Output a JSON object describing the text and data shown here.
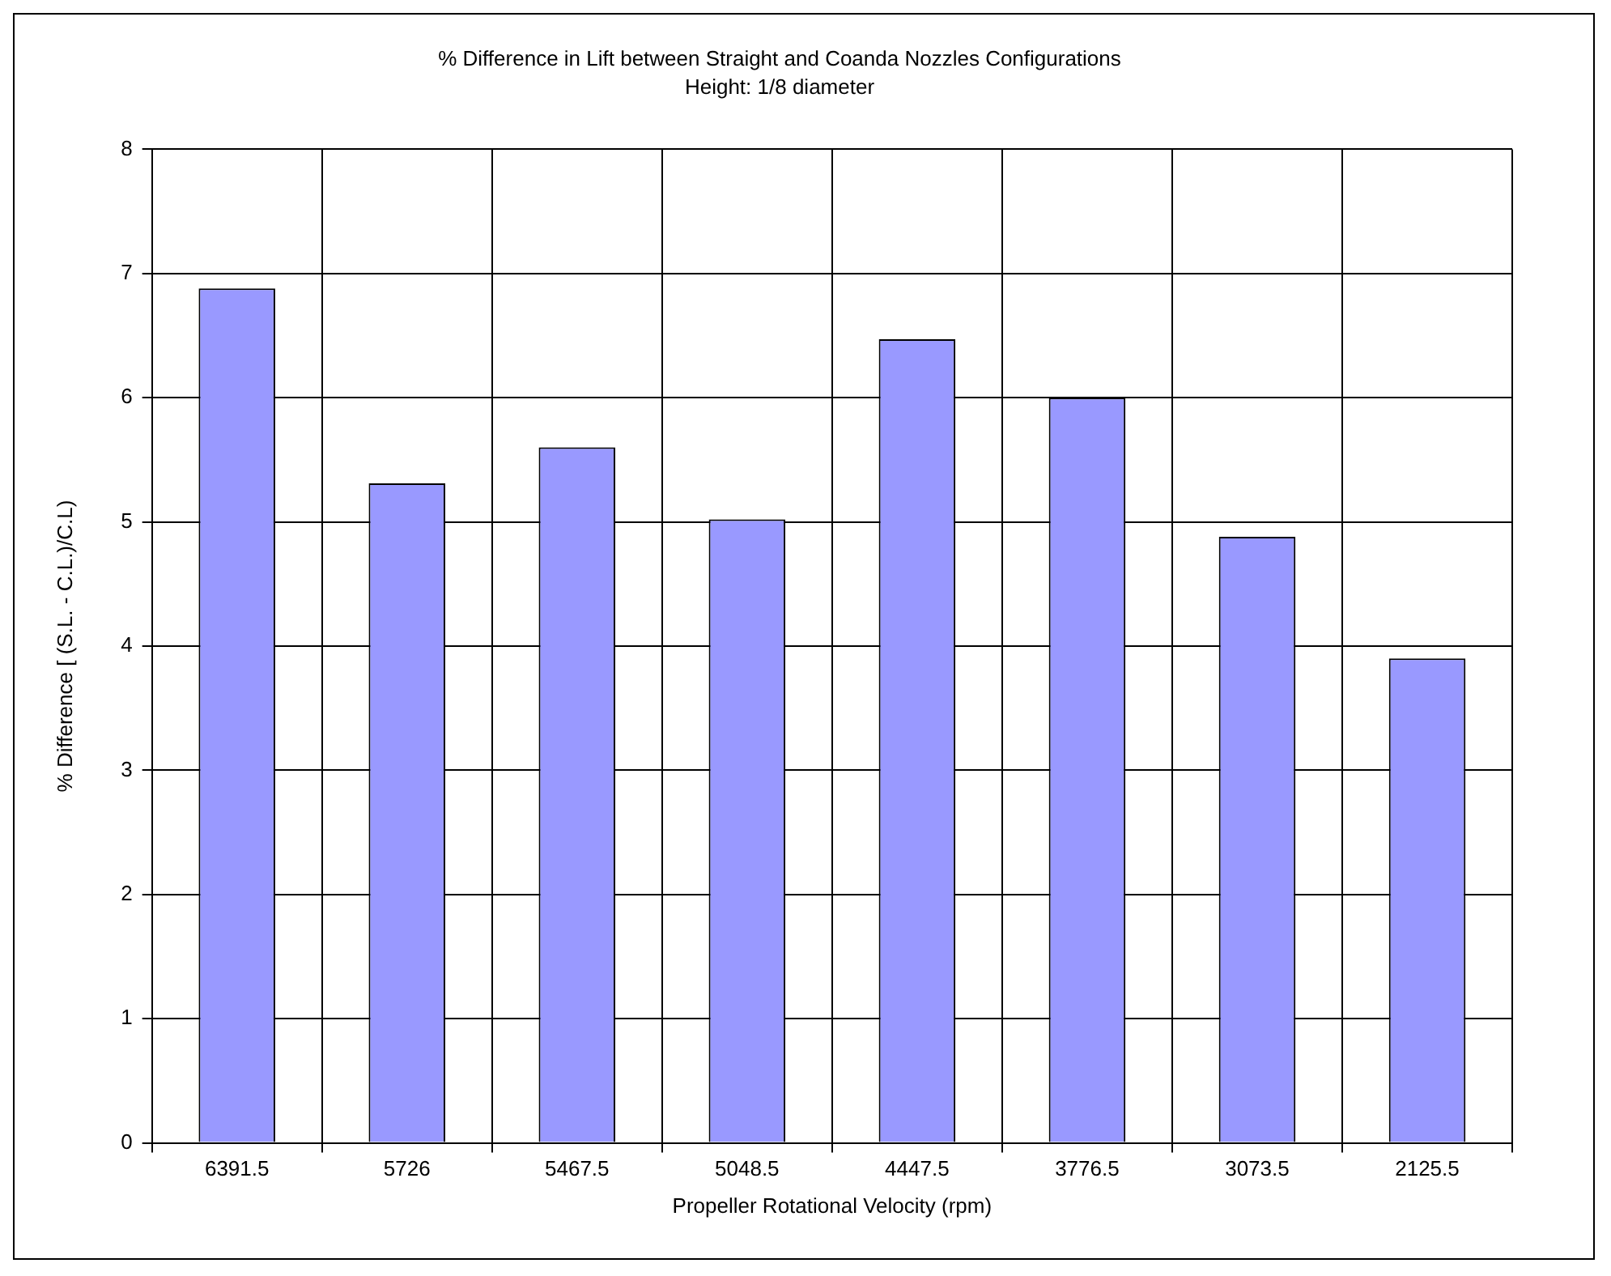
{
  "chart_data": {
    "type": "bar",
    "title": "% Difference in Lift between Straight and Coanda Nozzles Configurations",
    "subtitle": "Height: 1/8 diameter",
    "xlabel": "Propeller Rotational Velocity (rpm)",
    "ylabel": "% Difference [ (S.L. - C.L.)/C.L)",
    "categories": [
      "6391.5",
      "5726",
      "5467.5",
      "5048.5",
      "4447.5",
      "3776.5",
      "3073.5",
      "2125.5"
    ],
    "values": [
      6.88,
      5.31,
      5.6,
      5.02,
      6.47,
      6.0,
      4.88,
      3.9
    ],
    "color": "#9999ff",
    "ylim": [
      0,
      8
    ],
    "yticks": [
      0,
      1,
      2,
      3,
      4,
      5,
      6,
      7,
      8
    ],
    "grid": true,
    "legend": false
  }
}
